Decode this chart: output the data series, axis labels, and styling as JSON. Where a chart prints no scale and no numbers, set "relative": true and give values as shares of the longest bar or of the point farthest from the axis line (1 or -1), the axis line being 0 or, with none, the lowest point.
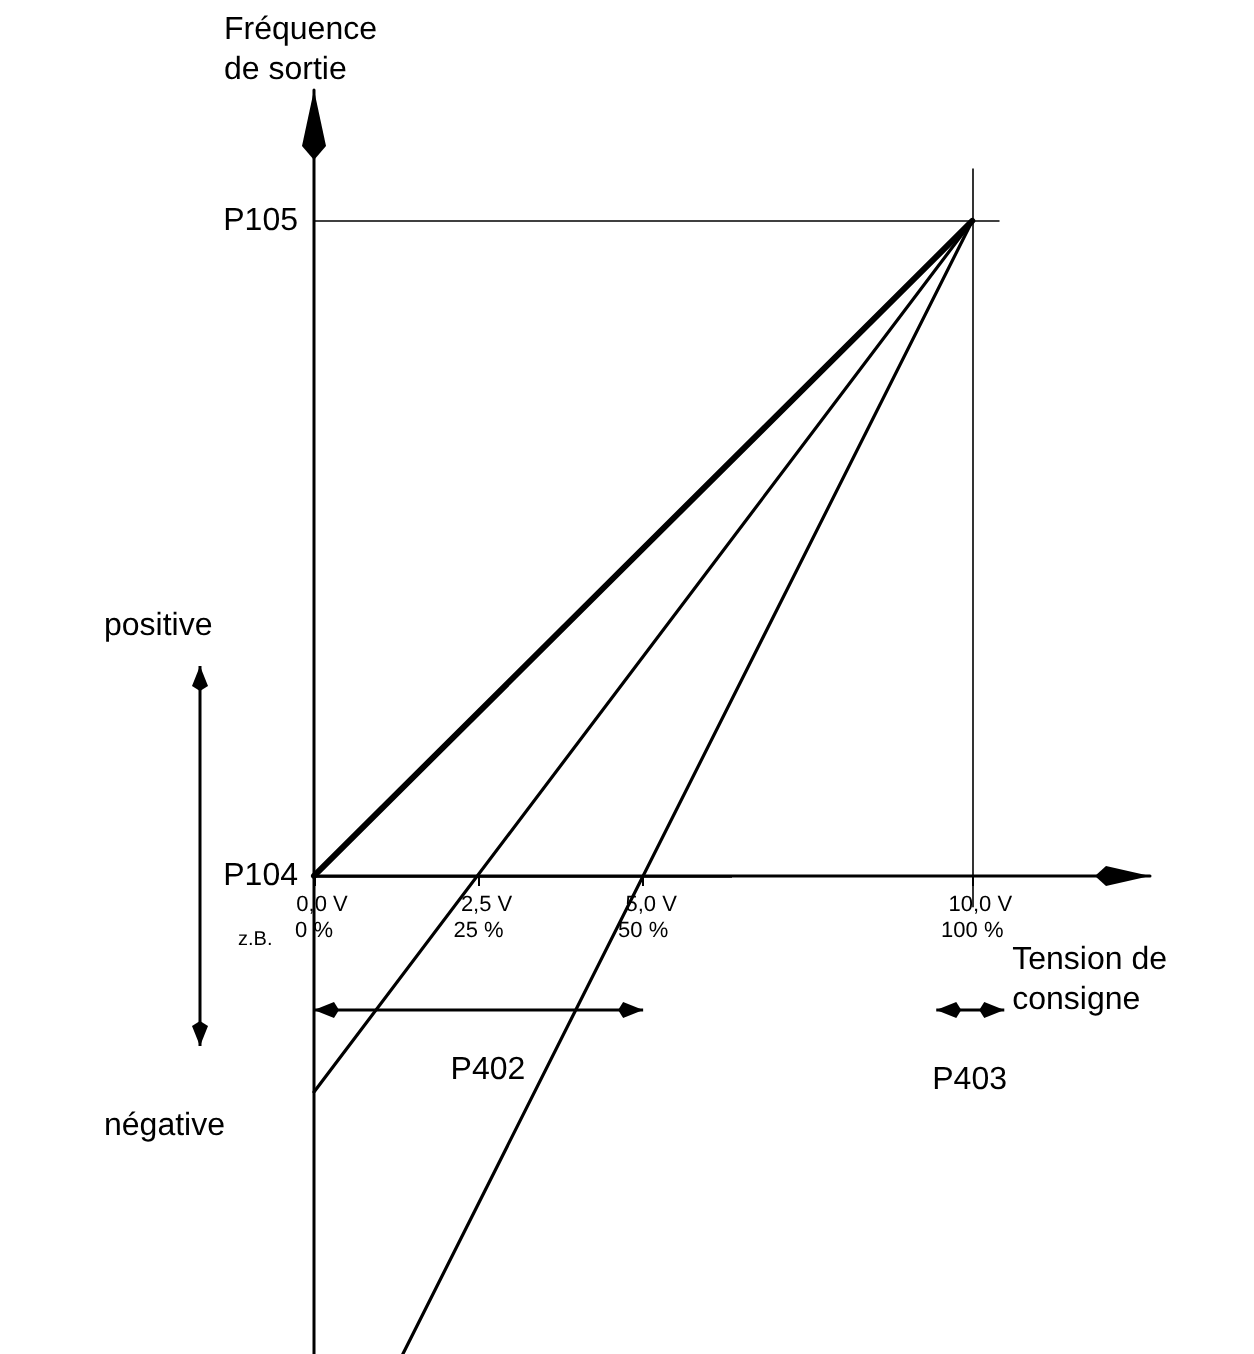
{
  "chart_data": {
    "type": "line",
    "relative": true,
    "xlabel": "Tension de\nconsigne",
    "ylabel": "Fréquence\nde sortie",
    "xlim": [
      0,
      127
    ],
    "xticks": [
      {
        "value": 0,
        "label": "0 %"
      },
      {
        "value": 25,
        "label": "25 %"
      },
      {
        "value": 50,
        "label": "50 %"
      },
      {
        "value": 100,
        "label": "100 %"
      }
    ],
    "series": [
      {
        "color": "#000000",
        "x": [
          0,
          100
        ],
        "values": [
          0,
          1
        ]
      },
      {
        "color": "#000000",
        "x": [
          0,
          100
        ],
        "values": [
          -0.33,
          1
        ]
      },
      {
        "color": "#000000",
        "x": [
          13.5,
          100
        ],
        "values": [
          -0.73,
          1
        ]
      }
    ],
    "ref_lines": [
      {
        "axis": "y",
        "value": 1,
        "label": "P105"
      },
      {
        "axis": "y",
        "value": 0,
        "label": "P104"
      },
      {
        "axis": "x",
        "value": 100
      }
    ],
    "annotations": [
      {
        "text": "0,0 V",
        "x": 0,
        "y": 0
      },
      {
        "text": "2,5 V",
        "x": 25,
        "y": 0
      },
      {
        "text": "5,0 V",
        "x": 50,
        "y": 0
      },
      {
        "text": "10,0 V",
        "x": 100,
        "y": 0
      },
      "positive",
      "négative",
      "z.B.",
      "P402",
      "P403"
    ],
    "grid": false,
    "marker": "none",
    "line_style": "solid"
  }
}
